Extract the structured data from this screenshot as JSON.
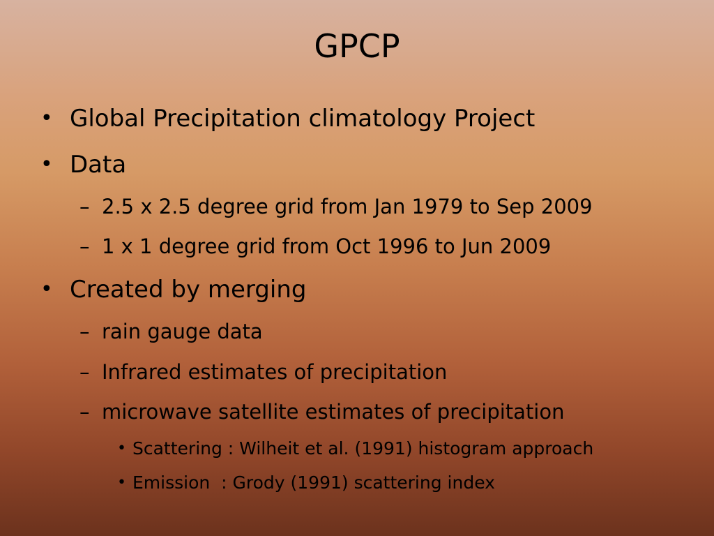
{
  "slide": {
    "title": "GPCP",
    "bullet_char": "•",
    "dash_char": "–",
    "items": [
      {
        "level": 1,
        "text": "Global Precipitation climatology Project"
      },
      {
        "level": 1,
        "text": "Data"
      },
      {
        "level": 2,
        "text": "2.5 x 2.5 degree grid from Jan 1979 to Sep 2009"
      },
      {
        "level": 2,
        "text": "1 x 1 degree grid from Oct 1996 to Jun 2009"
      },
      {
        "level": 1,
        "text": "Created by merging"
      },
      {
        "level": 2,
        "text": "rain gauge data"
      },
      {
        "level": 2,
        "text": "Infrared estimates of precipitation"
      },
      {
        "level": 2,
        "text": "microwave satellite estimates of precipitation"
      },
      {
        "level": 3,
        "text": "Scattering : Wilheit et al. (1991) histogram approach"
      },
      {
        "level": 3,
        "text": "Emission  : Grody (1991) scattering index"
      }
    ]
  }
}
